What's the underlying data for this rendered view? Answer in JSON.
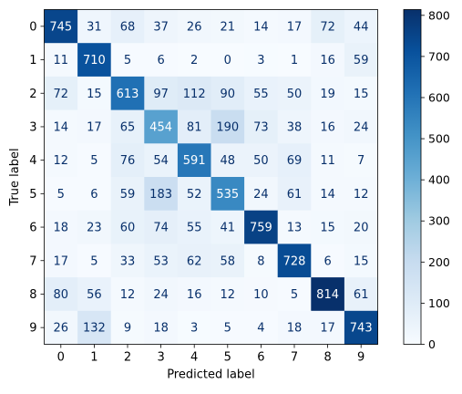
{
  "chart_data": {
    "type": "heatmap",
    "title": "",
    "xlabel": "Predicted label",
    "ylabel": "True label",
    "x_categories": [
      "0",
      "1",
      "2",
      "3",
      "4",
      "5",
      "6",
      "7",
      "8",
      "9"
    ],
    "y_categories": [
      "0",
      "1",
      "2",
      "3",
      "4",
      "5",
      "6",
      "7",
      "8",
      "9"
    ],
    "matrix": [
      [
        745,
        31,
        68,
        37,
        26,
        21,
        14,
        17,
        72,
        44
      ],
      [
        11,
        710,
        5,
        6,
        2,
        0,
        3,
        1,
        16,
        59
      ],
      [
        72,
        15,
        613,
        97,
        112,
        90,
        55,
        50,
        19,
        15
      ],
      [
        14,
        17,
        65,
        454,
        81,
        190,
        73,
        38,
        16,
        24
      ],
      [
        12,
        5,
        76,
        54,
        591,
        48,
        50,
        69,
        11,
        7
      ],
      [
        5,
        6,
        59,
        183,
        52,
        535,
        24,
        61,
        14,
        12
      ],
      [
        18,
        23,
        60,
        74,
        55,
        41,
        759,
        13,
        15,
        20
      ],
      [
        17,
        5,
        33,
        53,
        62,
        58,
        8,
        728,
        6,
        15
      ],
      [
        80,
        56,
        12,
        24,
        16,
        12,
        10,
        5,
        814,
        61
      ],
      [
        26,
        132,
        9,
        18,
        3,
        5,
        4,
        18,
        17,
        743
      ]
    ],
    "colormap": "Blues",
    "vmin": 0,
    "vmax": 814,
    "colorbar_ticks": [
      0,
      100,
      200,
      300,
      400,
      500,
      600,
      700,
      800
    ],
    "light_text_color": "#ffffff",
    "dark_text_color": "#08306b",
    "grid": false
  }
}
